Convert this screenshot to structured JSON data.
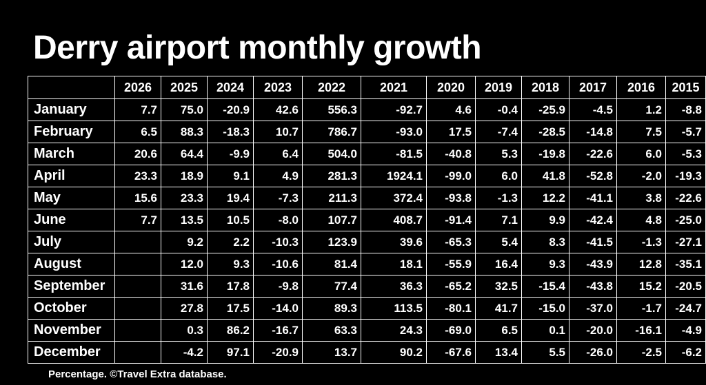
{
  "chart_data": {
    "type": "table",
    "title": "Derry airport monthly growth",
    "note": "Percentage. ©Travel Extra database.",
    "columns": [
      "2026",
      "2025",
      "2024",
      "2023",
      "2022",
      "2021",
      "2020",
      "2019",
      "2018",
      "2017",
      "2016",
      "2015"
    ],
    "rows": [
      {
        "label": "January",
        "values": [
          "7.7",
          "75.0",
          "-20.9",
          "42.6",
          "556.3",
          "-92.7",
          "4.6",
          "-0.4",
          "-25.9",
          "-4.5",
          "1.2",
          "-8.8"
        ]
      },
      {
        "label": "February",
        "values": [
          "6.5",
          "88.3",
          "-18.3",
          "10.7",
          "786.7",
          "-93.0",
          "17.5",
          "-7.4",
          "-28.5",
          "-14.8",
          "7.5",
          "-5.7"
        ]
      },
      {
        "label": "March",
        "values": [
          "20.6",
          "64.4",
          "-9.9",
          "6.4",
          "504.0",
          "-81.5",
          "-40.8",
          "5.3",
          "-19.8",
          "-22.6",
          "6.0",
          "-5.3"
        ]
      },
      {
        "label": "April",
        "values": [
          "23.3",
          "18.9",
          "9.1",
          "4.9",
          "281.3",
          "1924.1",
          "-99.0",
          "6.0",
          "41.8",
          "-52.8",
          "-2.0",
          "-19.3"
        ]
      },
      {
        "label": "May",
        "values": [
          "15.6",
          "23.3",
          "19.4",
          "-7.3",
          "211.3",
          "372.4",
          "-93.8",
          "-1.3",
          "12.2",
          "-41.1",
          "3.8",
          "-22.6"
        ]
      },
      {
        "label": "June",
        "values": [
          "7.7",
          "13.5",
          "10.5",
          "-8.0",
          "107.7",
          "408.7",
          "-91.4",
          "7.1",
          "9.9",
          "-42.4",
          "4.8",
          "-25.0"
        ]
      },
      {
        "label": "July",
        "values": [
          "",
          "9.2",
          "2.2",
          "-10.3",
          "123.9",
          "39.6",
          "-65.3",
          "5.4",
          "8.3",
          "-41.5",
          "-1.3",
          "-27.1"
        ]
      },
      {
        "label": "August",
        "values": [
          "",
          "12.0",
          "9.3",
          "-10.6",
          "81.4",
          "18.1",
          "-55.9",
          "16.4",
          "9.3",
          "-43.9",
          "12.8",
          "-35.1"
        ]
      },
      {
        "label": "September",
        "values": [
          "",
          "31.6",
          "17.8",
          "-9.8",
          "77.4",
          "36.3",
          "-65.2",
          "32.5",
          "-15.4",
          "-43.8",
          "15.2",
          "-20.5"
        ]
      },
      {
        "label": "October",
        "values": [
          "",
          "27.8",
          "17.5",
          "-14.0",
          "89.3",
          "113.5",
          "-80.1",
          "41.7",
          "-15.0",
          "-37.0",
          "-1.7",
          "-24.7"
        ]
      },
      {
        "label": "November",
        "values": [
          "",
          "0.3",
          "86.2",
          "-16.7",
          "63.3",
          "24.3",
          "-69.0",
          "6.5",
          "0.1",
          "-20.0",
          "-16.1",
          "-4.9"
        ]
      },
      {
        "label": "December",
        "values": [
          "",
          "-4.2",
          "97.1",
          "-20.9",
          "13.7",
          "90.2",
          "-67.6",
          "13.4",
          "5.5",
          "-26.0",
          "-2.5",
          "-6.2"
        ]
      }
    ],
    "colors": {
      "background": "#000000",
      "text": "#ffffff",
      "grid": "#ffffff"
    }
  }
}
